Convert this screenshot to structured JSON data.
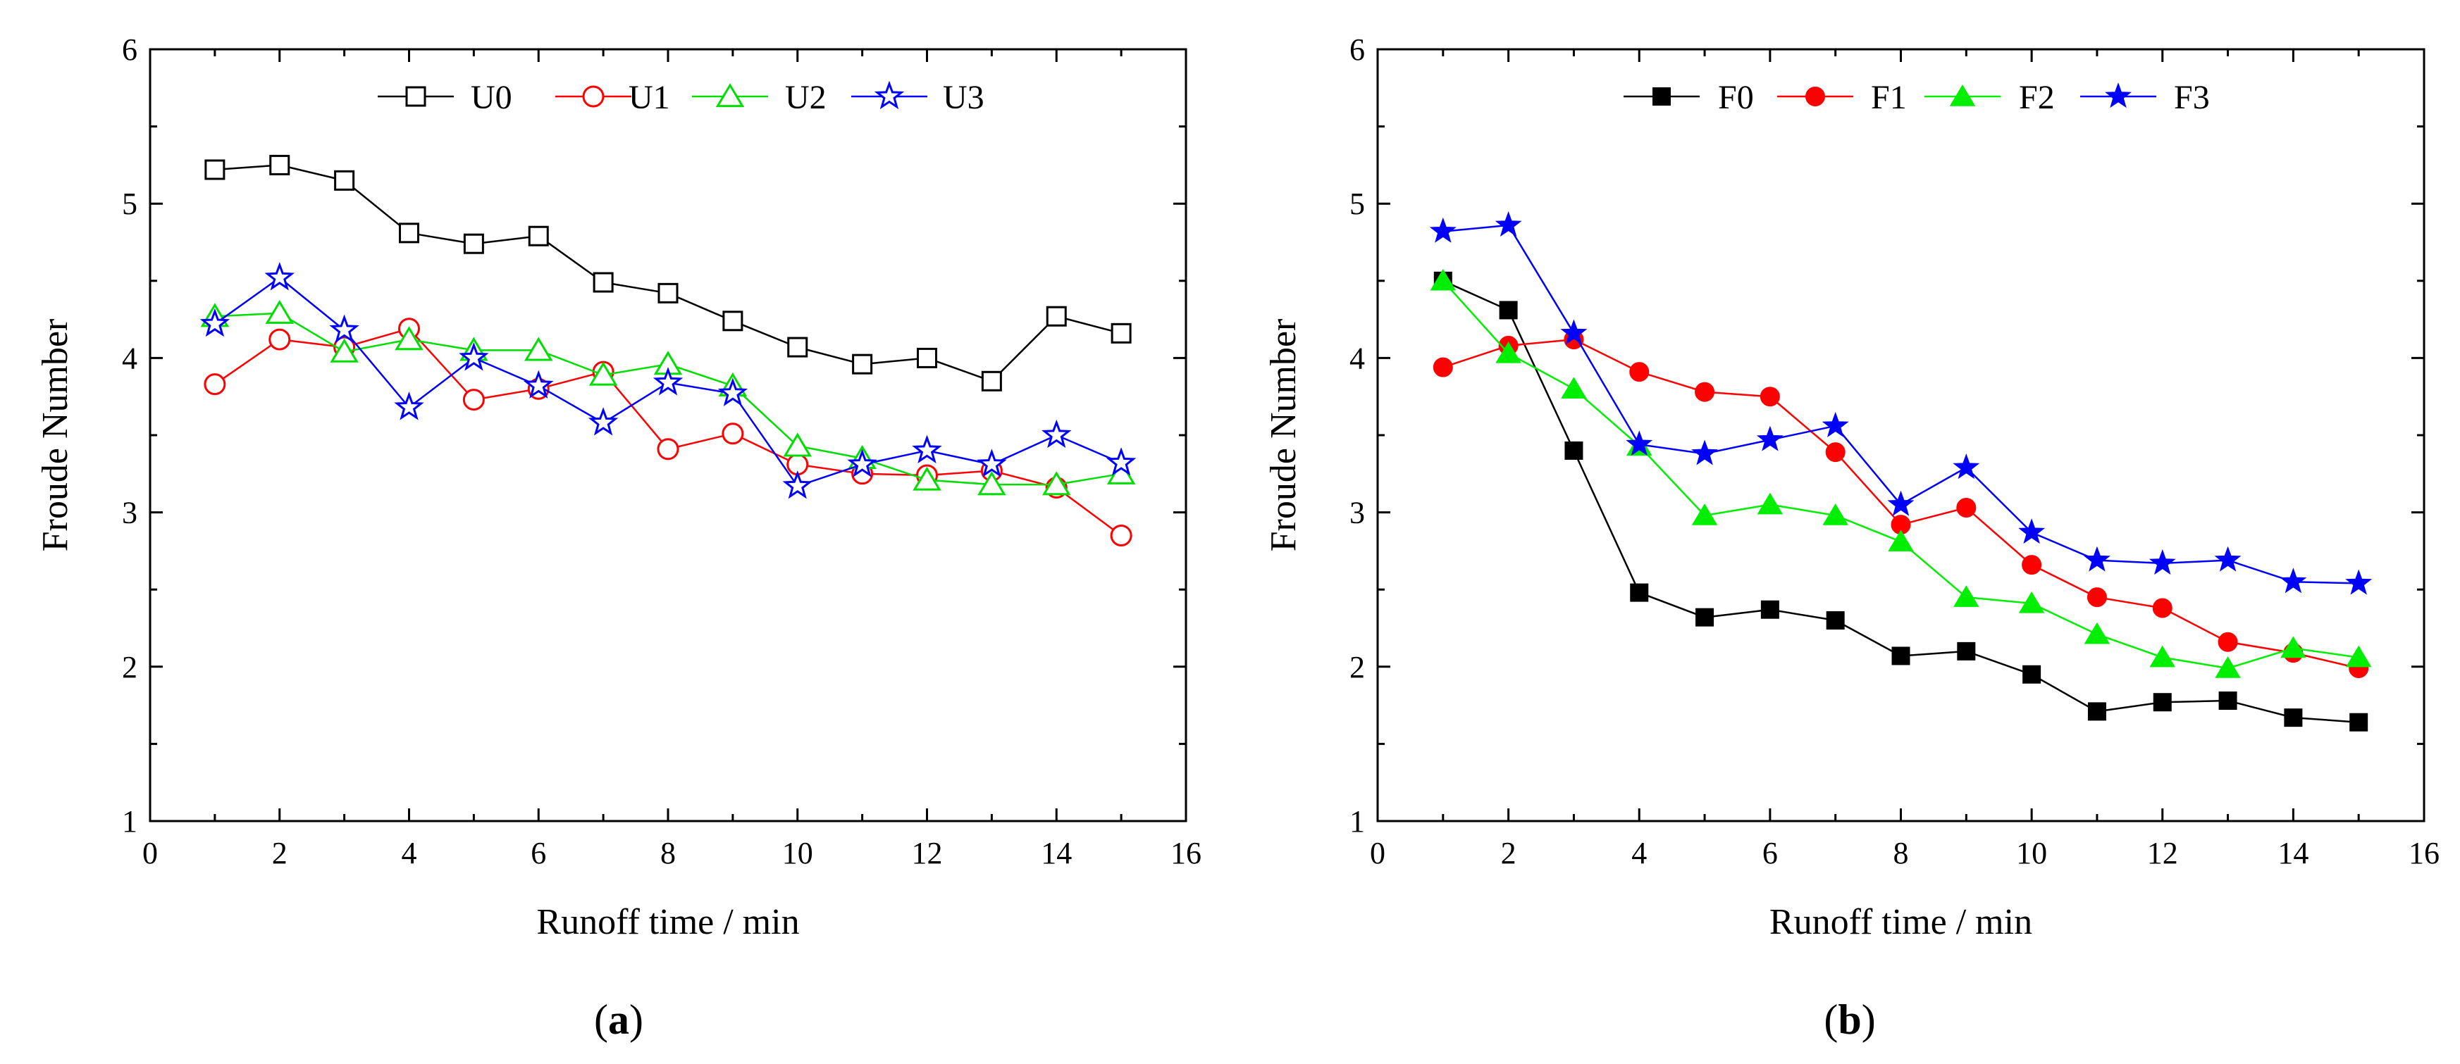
{
  "chart_data": [
    {
      "type": "line",
      "panel_label": "a",
      "xlabel": "Runoff time / min",
      "ylabel": "Froude Number",
      "xlim": [
        0,
        16
      ],
      "ylim": [
        1,
        6
      ],
      "xticks": [
        0,
        2,
        4,
        6,
        8,
        10,
        12,
        14,
        16
      ],
      "yticks": [
        1,
        2,
        3,
        4,
        5,
        6
      ],
      "x": [
        1,
        2,
        3,
        4,
        5,
        6,
        7,
        8,
        9,
        10,
        11,
        12,
        13,
        14,
        15
      ],
      "legend_position": "top-center",
      "marker_fill": "open",
      "series": [
        {
          "name": "U0",
          "color": "#000000",
          "marker": "square",
          "values": [
            5.22,
            5.25,
            5.15,
            4.81,
            4.74,
            4.79,
            4.49,
            4.42,
            4.24,
            4.07,
            3.96,
            4.0,
            3.85,
            4.27,
            4.16
          ]
        },
        {
          "name": "U1",
          "color": "#ff0000",
          "marker": "circle",
          "values": [
            3.83,
            4.12,
            4.07,
            4.19,
            3.73,
            3.8,
            3.91,
            3.41,
            3.51,
            3.31,
            3.25,
            3.24,
            3.27,
            3.16,
            2.85
          ]
        },
        {
          "name": "U2",
          "color": "#00dd00",
          "marker": "triangle",
          "values": [
            4.27,
            4.29,
            4.04,
            4.12,
            4.05,
            4.05,
            3.89,
            3.96,
            3.82,
            3.43,
            3.35,
            3.21,
            3.18,
            3.18,
            3.25
          ]
        },
        {
          "name": "U3",
          "color": "#0000ff",
          "marker": "star",
          "values": [
            4.22,
            4.52,
            4.18,
            3.68,
            4.0,
            3.82,
            3.58,
            3.84,
            3.77,
            3.17,
            3.31,
            3.4,
            3.31,
            3.5,
            3.32
          ]
        }
      ]
    },
    {
      "type": "line",
      "panel_label": "b",
      "xlabel": "Runoff time / min",
      "ylabel": "Froude Number",
      "xlim": [
        0,
        16
      ],
      "ylim": [
        1,
        6
      ],
      "xticks": [
        0,
        2,
        4,
        6,
        8,
        10,
        12,
        14,
        16
      ],
      "yticks": [
        1,
        2,
        3,
        4,
        5,
        6
      ],
      "x": [
        1,
        2,
        3,
        4,
        5,
        6,
        7,
        8,
        9,
        10,
        11,
        12,
        13,
        14,
        15
      ],
      "legend_position": "top-center",
      "marker_fill": "filled",
      "series": [
        {
          "name": "F0",
          "color": "#000000",
          "marker": "square",
          "values": [
            4.5,
            4.31,
            3.4,
            2.48,
            2.32,
            2.37,
            2.3,
            2.07,
            2.1,
            1.95,
            1.71,
            1.77,
            1.78,
            1.67,
            1.64
          ]
        },
        {
          "name": "F1",
          "color": "#ff0000",
          "marker": "circle",
          "values": [
            3.94,
            4.08,
            4.12,
            3.91,
            3.78,
            3.75,
            3.39,
            2.92,
            3.03,
            2.66,
            2.45,
            2.38,
            2.16,
            2.09,
            1.99
          ]
        },
        {
          "name": "F2",
          "color": "#00ee00",
          "marker": "triangle",
          "values": [
            4.5,
            4.03,
            3.8,
            3.43,
            2.98,
            3.05,
            2.98,
            2.81,
            2.45,
            2.41,
            2.21,
            2.06,
            1.99,
            2.12,
            2.06
          ]
        },
        {
          "name": "F3",
          "color": "#0000ff",
          "marker": "star",
          "values": [
            4.82,
            4.86,
            4.16,
            3.44,
            3.38,
            3.47,
            3.56,
            3.05,
            3.29,
            2.87,
            2.69,
            2.67,
            2.69,
            2.55,
            2.54
          ]
        }
      ]
    }
  ]
}
